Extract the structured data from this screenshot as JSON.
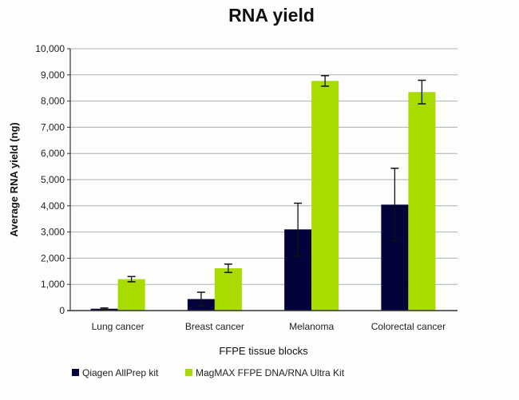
{
  "chart_data": {
    "type": "bar",
    "title": "RNA yield",
    "xlabel": "FFPE tissue blocks",
    "ylabel": "Average RNA yield (ng)",
    "ylim": [
      0,
      10000
    ],
    "yticks": [
      "0",
      "1,000",
      "2,000",
      "3,000",
      "4,000",
      "5,000",
      "6,000",
      "7,000",
      "8,000",
      "9,000",
      "10,000"
    ],
    "categories": [
      "Lung cancer",
      "Breast cancer",
      "Melanoma",
      "Colorectal cancer"
    ],
    "series": [
      {
        "name": "Qiagen AllPrep kit",
        "color": "#03033a",
        "values": [
          70,
          440,
          3100,
          4045
        ],
        "errors": [
          30,
          260,
          1000,
          1390
        ]
      },
      {
        "name": "MagMAX FFPE DNA/RNA Ultra Kit",
        "color": "#a8dc00",
        "values": [
          1200,
          1615,
          8770,
          8345
        ],
        "errors": [
          100,
          160,
          200,
          450
        ]
      }
    ],
    "grid": true,
    "legend": "bottom-left"
  }
}
